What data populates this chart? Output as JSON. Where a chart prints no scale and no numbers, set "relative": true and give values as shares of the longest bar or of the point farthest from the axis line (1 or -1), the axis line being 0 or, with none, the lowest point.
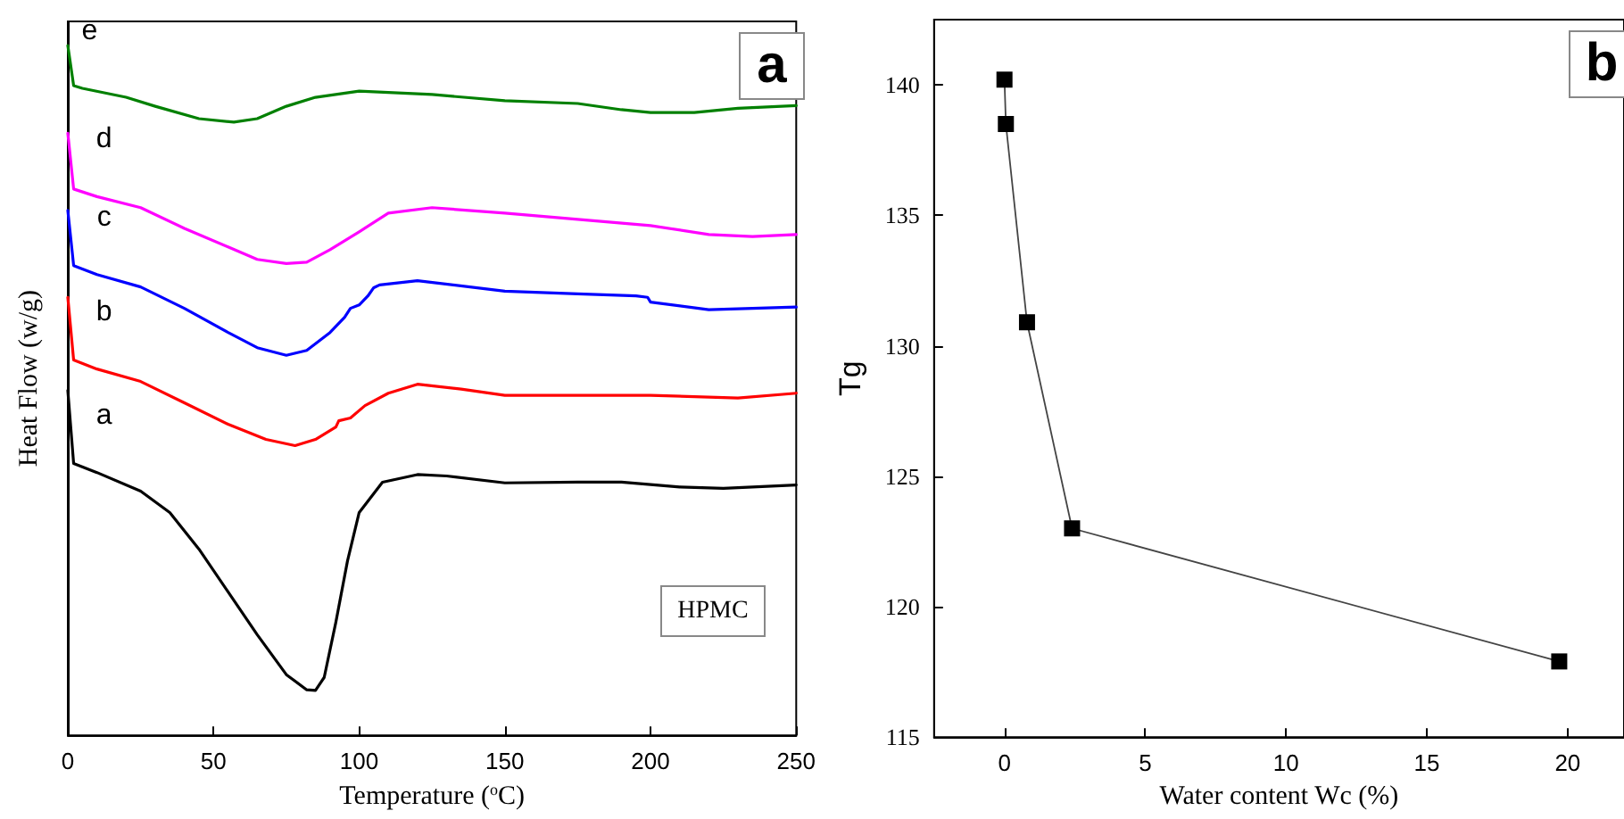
{
  "chart_data": [
    {
      "type": "line",
      "relative": true,
      "xlabel": "Temperature ($^{o}$C)",
      "ylabel": "Heat Flow (w/g)",
      "xlim": [
        0,
        250
      ],
      "xticks": [
        0,
        50,
        100,
        150,
        200,
        250
      ],
      "tick_labels": "x",
      "legend": false,
      "grid": false,
      "marker": "none",
      "line_style": "solid",
      "annotations": [
        "a",
        "HPMC"
      ],
      "series": [
        {
          "name": "a",
          "color": "#000000",
          "x": [
            0,
            2,
            10,
            25,
            35,
            45,
            55,
            65,
            75,
            82,
            85,
            88,
            92,
            96,
            100,
            108,
            120,
            130,
            150,
            175,
            190,
            210,
            225,
            250
          ],
          "values": [
            0.5,
            0.394,
            0.381,
            0.354,
            0.323,
            0.27,
            0.208,
            0.146,
            0.088,
            0.066,
            0.065,
            0.084,
            0.164,
            0.253,
            0.323,
            0.367,
            0.378,
            0.376,
            0.366,
            0.367,
            0.367,
            0.36,
            0.358,
            0.363
          ]
        },
        {
          "name": "b",
          "color": "#ff0000",
          "x": [
            0,
            2,
            10,
            25,
            40,
            55,
            68,
            78,
            85,
            92,
            93,
            97,
            102,
            110,
            120,
            135,
            150,
            200,
            230,
            250
          ],
          "values": [
            0.635,
            0.544,
            0.531,
            0.513,
            0.482,
            0.451,
            0.429,
            0.42,
            0.429,
            0.447,
            0.456,
            0.46,
            0.478,
            0.496,
            0.509,
            0.502,
            0.493,
            0.493,
            0.489,
            0.496
          ]
        },
        {
          "name": "c",
          "color": "#0000ff",
          "x": [
            0,
            2,
            10,
            25,
            40,
            55,
            65,
            75,
            82,
            90,
            95,
            97,
            100,
            103,
            105,
            107,
            120,
            150,
            175,
            195,
            199,
            200,
            220,
            250
          ],
          "values": [
            0.761,
            0.681,
            0.668,
            0.65,
            0.619,
            0.584,
            0.562,
            0.551,
            0.558,
            0.584,
            0.606,
            0.619,
            0.624,
            0.637,
            0.649,
            0.653,
            0.659,
            0.644,
            0.64,
            0.637,
            0.635,
            0.628,
            0.617,
            0.621
          ]
        },
        {
          "name": "d",
          "color": "#ff00ff",
          "x": [
            0,
            2,
            10,
            25,
            40,
            55,
            65,
            75,
            82,
            90,
            100,
            110,
            125,
            150,
            175,
            200,
            220,
            235,
            250
          ],
          "values": [
            0.873,
            0.792,
            0.781,
            0.765,
            0.735,
            0.708,
            0.69,
            0.684,
            0.686,
            0.704,
            0.73,
            0.757,
            0.765,
            0.757,
            0.748,
            0.739,
            0.726,
            0.723,
            0.726
          ]
        },
        {
          "name": "e",
          "color": "#008000",
          "x": [
            0,
            2,
            5,
            20,
            30,
            45,
            57,
            65,
            75,
            85,
            100,
            125,
            150,
            175,
            190,
            200,
            215,
            230,
            250
          ],
          "values": [
            1.0,
            0.942,
            0.938,
            0.925,
            0.912,
            0.894,
            0.889,
            0.894,
            0.912,
            0.925,
            0.934,
            0.929,
            0.92,
            0.916,
            0.907,
            0.903,
            0.903,
            0.909,
            0.913
          ]
        }
      ]
    },
    {
      "type": "line",
      "xlabel": "Water content Wc (%)",
      "ylabel": "Tg",
      "xlim": [
        -2.5,
        22
      ],
      "xticks": [
        0,
        5,
        10,
        15,
        20
      ],
      "ylim": [
        115,
        142.5
      ],
      "yticks": [
        115,
        120,
        125,
        130,
        135,
        140
      ],
      "legend": false,
      "grid": false,
      "marker": "square",
      "line_style": "solid",
      "annotations": [
        "b"
      ],
      "series": [
        {
          "color": "#000000",
          "x": [
            0,
            0.05,
            0.8,
            2.4,
            19.7
          ],
          "values": [
            140.2,
            138.5,
            130.9,
            123.0,
            117.9
          ]
        }
      ]
    }
  ]
}
